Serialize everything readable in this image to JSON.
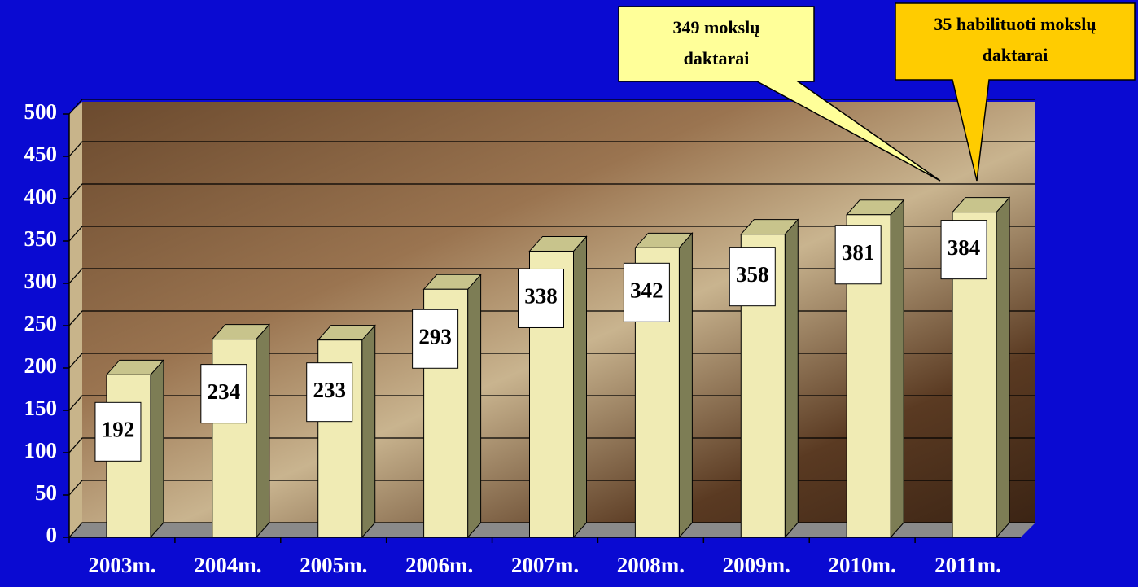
{
  "chart_data": {
    "type": "bar3d",
    "categories": [
      "2003m.",
      "2004m.",
      "2005m.",
      "2006m.",
      "2007m.",
      "2008m.",
      "2009m.",
      "2010m.",
      "2011m."
    ],
    "values": [
      192,
      234,
      233,
      293,
      338,
      342,
      358,
      381,
      384
    ],
    "color": "#f0ebb4",
    "ylim": [
      0,
      500
    ],
    "yticks": [
      0,
      50,
      100,
      150,
      200,
      250,
      300,
      350,
      400,
      450,
      500
    ],
    "grid": true,
    "annotations": [
      {
        "lines": [
          "349  mokslų",
          "daktarai"
        ],
        "color": "#ffff99"
      },
      {
        "lines": [
          "35  habilituoti mokslų",
          "daktarai"
        ],
        "color": "#ffcc00"
      }
    ]
  }
}
